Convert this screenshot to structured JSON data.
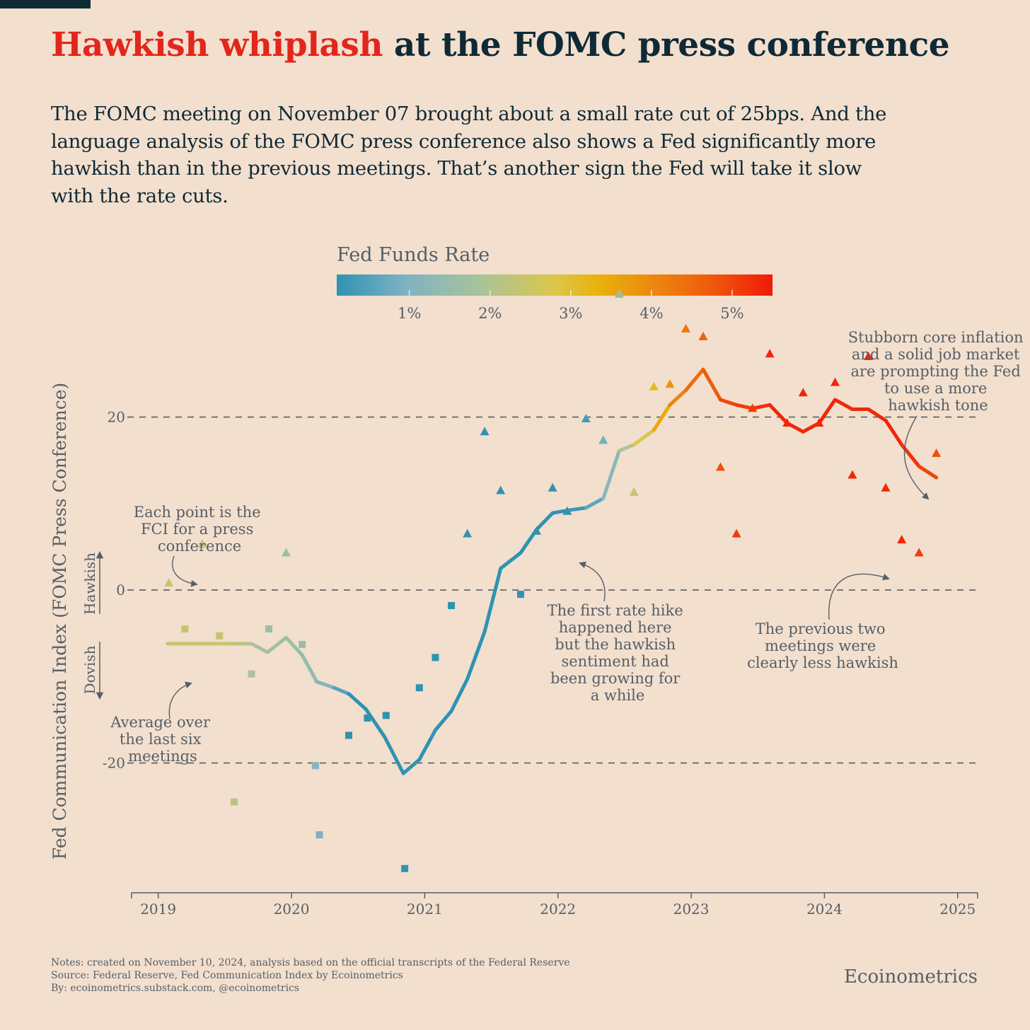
{
  "header": {
    "title_highlight": "Hawkish whiplash",
    "title_rest": " at the FOMC press conference",
    "subtitle": "The FOMC meeting on November 07 brought about a small rate cut of 25bps. And the language analysis of the FOMC press conference also shows a Fed significantly more hawkish than in the previous meetings. That’s another sign the Fed will take it slow with the rate cuts."
  },
  "colors": {
    "title_text": "#0e2a36",
    "title_highlight": "#e3261c",
    "background": "#f3dfce",
    "muted_text": "#555f66",
    "scale": [
      "#2e93b3",
      "#8fb7c3",
      "#a9c39a",
      "#d4c44e",
      "#e6b614",
      "#ec8a10",
      "#ef5a0c",
      "#f01a08"
    ]
  },
  "chart_data": {
    "type": "scatter",
    "title": "",
    "xlabel": "",
    "ylabel": "Fed Communication Index (FOMC Press Conference)",
    "x_ticks": [
      "2019",
      "2020",
      "2021",
      "2022",
      "2023",
      "2024",
      "2025"
    ],
    "xlim": [
      2018.8,
      2025.15
    ],
    "ylim": [
      -35,
      40
    ],
    "y_ticks": [
      20,
      0,
      -20
    ],
    "y_tick_labels": [
      "20",
      "0",
      "-20"
    ],
    "grid_lines_dashed_at": [
      20,
      0,
      -20
    ],
    "direction_labels": {
      "up": "Hawkish",
      "down": "Dovish"
    },
    "color_scale": {
      "title": "Fed Funds Rate",
      "min_rate": 0.1,
      "max_rate": 5.5,
      "ticks": [
        1,
        2,
        3,
        4,
        5
      ],
      "tick_labels": [
        "1%",
        "2%",
        "3%",
        "4%",
        "5%"
      ]
    },
    "series": [
      {
        "role": "points",
        "points": [
          {
            "x": 2019.08,
            "y": 0.8,
            "rate": 2.4
          },
          {
            "x": 2019.2,
            "y": -4.5,
            "rate": 2.4
          },
          {
            "x": 2019.33,
            "y": 5.3,
            "rate": 2.4
          },
          {
            "x": 2019.46,
            "y": -5.3,
            "rate": 2.4
          },
          {
            "x": 2019.57,
            "y": -24.5,
            "rate": 2.15
          },
          {
            "x": 2019.7,
            "y": -9.7,
            "rate": 1.9
          },
          {
            "x": 2019.83,
            "y": -4.5,
            "rate": 1.6
          },
          {
            "x": 2019.96,
            "y": 4.3,
            "rate": 1.55
          },
          {
            "x": 2020.08,
            "y": -6.3,
            "rate": 1.55
          },
          {
            "x": 2020.18,
            "y": -20.3,
            "rate": 1.1
          },
          {
            "x": 2020.21,
            "y": -28.3,
            "rate": 0.9
          },
          {
            "x": 2020.43,
            "y": -16.8,
            "rate": 0.1
          },
          {
            "x": 2020.57,
            "y": -14.8,
            "rate": 0.1
          },
          {
            "x": 2020.71,
            "y": -14.5,
            "rate": 0.1
          },
          {
            "x": 2020.85,
            "y": -32.2,
            "rate": 0.1
          },
          {
            "x": 2020.96,
            "y": -11.3,
            "rate": 0.1
          },
          {
            "x": 2021.08,
            "y": -7.8,
            "rate": 0.1
          },
          {
            "x": 2021.2,
            "y": -1.8,
            "rate": 0.1
          },
          {
            "x": 2021.32,
            "y": 6.5,
            "rate": 0.1
          },
          {
            "x": 2021.45,
            "y": 18.3,
            "rate": 0.1
          },
          {
            "x": 2021.57,
            "y": 11.5,
            "rate": 0.1
          },
          {
            "x": 2021.72,
            "y": -0.5,
            "rate": 0.1
          },
          {
            "x": 2021.84,
            "y": 6.8,
            "rate": 0.1
          },
          {
            "x": 2021.96,
            "y": 11.8,
            "rate": 0.1
          },
          {
            "x": 2022.07,
            "y": 9.1,
            "rate": 0.1
          },
          {
            "x": 2022.21,
            "y": 19.8,
            "rate": 0.35
          },
          {
            "x": 2022.34,
            "y": 17.3,
            "rate": 0.85
          },
          {
            "x": 2022.46,
            "y": 34.2,
            "rate": 1.6
          },
          {
            "x": 2022.57,
            "y": 11.3,
            "rate": 2.4
          },
          {
            "x": 2022.72,
            "y": 23.5,
            "rate": 3.1
          },
          {
            "x": 2022.84,
            "y": 23.8,
            "rate": 3.85
          },
          {
            "x": 2022.96,
            "y": 30.2,
            "rate": 4.3
          },
          {
            "x": 2023.09,
            "y": 29.3,
            "rate": 4.6
          },
          {
            "x": 2023.22,
            "y": 14.2,
            "rate": 4.85
          },
          {
            "x": 2023.34,
            "y": 6.5,
            "rate": 5.1
          },
          {
            "x": 2023.46,
            "y": 21.0,
            "rate": 5.1
          },
          {
            "x": 2023.59,
            "y": 27.3,
            "rate": 5.35
          },
          {
            "x": 2023.72,
            "y": 19.3,
            "rate": 5.35
          },
          {
            "x": 2023.84,
            "y": 22.8,
            "rate": 5.35
          },
          {
            "x": 2023.96,
            "y": 19.3,
            "rate": 5.35
          },
          {
            "x": 2024.08,
            "y": 24.0,
            "rate": 5.35
          },
          {
            "x": 2024.21,
            "y": 13.3,
            "rate": 5.35
          },
          {
            "x": 2024.33,
            "y": 27.0,
            "rate": 5.35
          },
          {
            "x": 2024.46,
            "y": 11.8,
            "rate": 5.35
          },
          {
            "x": 2024.58,
            "y": 5.8,
            "rate": 5.35
          },
          {
            "x": 2024.71,
            "y": 4.3,
            "rate": 5.1
          },
          {
            "x": 2024.84,
            "y": 15.8,
            "rate": 4.85
          }
        ]
      },
      {
        "role": "average",
        "points": [
          {
            "x": 2019.07,
            "y": -6.2,
            "rate": 2.4
          },
          {
            "x": 2019.2,
            "y": -6.2,
            "rate": 2.4
          },
          {
            "x": 2019.33,
            "y": -6.2,
            "rate": 2.4
          },
          {
            "x": 2019.46,
            "y": -6.2,
            "rate": 2.4
          },
          {
            "x": 2019.57,
            "y": -6.2,
            "rate": 2.3
          },
          {
            "x": 2019.7,
            "y": -6.2,
            "rate": 2.0
          },
          {
            "x": 2019.82,
            "y": -7.2,
            "rate": 1.75
          },
          {
            "x": 2019.96,
            "y": -5.5,
            "rate": 1.6
          },
          {
            "x": 2020.08,
            "y": -7.5,
            "rate": 1.55
          },
          {
            "x": 2020.19,
            "y": -10.6,
            "rate": 1.3
          },
          {
            "x": 2020.32,
            "y": -11.3,
            "rate": 0.9
          },
          {
            "x": 2020.43,
            "y": -12.0,
            "rate": 0.1
          },
          {
            "x": 2020.56,
            "y": -13.8,
            "rate": 0.1
          },
          {
            "x": 2020.7,
            "y": -17.0,
            "rate": 0.1
          },
          {
            "x": 2020.84,
            "y": -21.2,
            "rate": 0.1
          },
          {
            "x": 2020.96,
            "y": -19.6,
            "rate": 0.1
          },
          {
            "x": 2021.08,
            "y": -16.2,
            "rate": 0.1
          },
          {
            "x": 2021.2,
            "y": -14.0,
            "rate": 0.1
          },
          {
            "x": 2021.32,
            "y": -10.3,
            "rate": 0.1
          },
          {
            "x": 2021.45,
            "y": -4.8,
            "rate": 0.1
          },
          {
            "x": 2021.57,
            "y": 2.5,
            "rate": 0.1
          },
          {
            "x": 2021.72,
            "y": 4.3,
            "rate": 0.1
          },
          {
            "x": 2021.84,
            "y": 7.0,
            "rate": 0.1
          },
          {
            "x": 2021.96,
            "y": 8.9,
            "rate": 0.1
          },
          {
            "x": 2022.07,
            "y": 9.2,
            "rate": 0.1
          },
          {
            "x": 2022.21,
            "y": 9.5,
            "rate": 0.35
          },
          {
            "x": 2022.34,
            "y": 10.6,
            "rate": 0.85
          },
          {
            "x": 2022.46,
            "y": 16.1,
            "rate": 1.6
          },
          {
            "x": 2022.57,
            "y": 16.8,
            "rate": 2.4
          },
          {
            "x": 2022.72,
            "y": 18.5,
            "rate": 3.1
          },
          {
            "x": 2022.84,
            "y": 21.4,
            "rate": 3.85
          },
          {
            "x": 2022.96,
            "y": 23.1,
            "rate": 4.3
          },
          {
            "x": 2023.09,
            "y": 25.5,
            "rate": 4.6
          },
          {
            "x": 2023.22,
            "y": 22.0,
            "rate": 4.85
          },
          {
            "x": 2023.34,
            "y": 21.4,
            "rate": 5.1
          },
          {
            "x": 2023.46,
            "y": 21.0,
            "rate": 5.1
          },
          {
            "x": 2023.59,
            "y": 21.4,
            "rate": 5.35
          },
          {
            "x": 2023.72,
            "y": 19.3,
            "rate": 5.35
          },
          {
            "x": 2023.84,
            "y": 18.3,
            "rate": 5.35
          },
          {
            "x": 2023.96,
            "y": 19.3,
            "rate": 5.35
          },
          {
            "x": 2024.08,
            "y": 22.0,
            "rate": 5.35
          },
          {
            "x": 2024.21,
            "y": 20.9,
            "rate": 5.35
          },
          {
            "x": 2024.33,
            "y": 20.9,
            "rate": 5.35
          },
          {
            "x": 2024.46,
            "y": 19.6,
            "rate": 5.35
          },
          {
            "x": 2024.58,
            "y": 16.8,
            "rate": 5.35
          },
          {
            "x": 2024.71,
            "y": 14.3,
            "rate": 5.1
          },
          {
            "x": 2024.84,
            "y": 13.0,
            "rate": 4.85
          }
        ]
      }
    ],
    "annotations": [
      "Each point is the FCI for a press conference",
      "Average over the last six meetings",
      "The first rate hike happened here but the hawkish sentiment had been growing for a while",
      "The previous two meetings were clearly less hawkish",
      "Stubborn core inflation and a solid job market are prompting the Fed to use a more hawkish tone"
    ]
  },
  "annotations": {
    "each_point": [
      "Each point is the",
      "FCI for a press",
      "conference"
    ],
    "average": [
      "Average over",
      "the last six",
      "meetings"
    ],
    "first_hike": [
      "The first rate hike",
      "happened here",
      "but the hawkish",
      "sentiment had",
      "been growing for",
      "a while"
    ],
    "previous_two": [
      "The previous two",
      "meetings were",
      "clearly less hawkish"
    ],
    "stubborn": [
      "Stubborn core inflation",
      "and a solid job market",
      "are prompting the Fed",
      "to use a more",
      "hawkish tone"
    ]
  },
  "footer": {
    "notes": "Notes: created on November 10, 2024, analysis based on the official transcripts of the Federal Reserve",
    "source": "Source: Federal Reserve, Fed Communication Index by Ecoinometrics",
    "by": "By: ecoinometrics.substack.com, @ecoinometrics",
    "brand": "Ecoinometrics"
  }
}
